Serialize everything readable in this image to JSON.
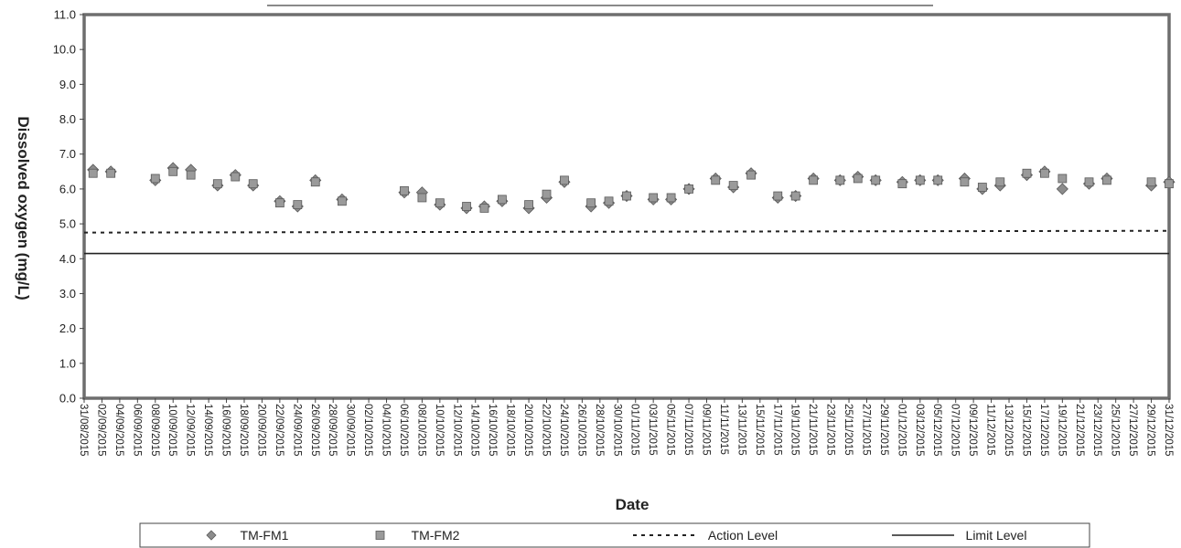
{
  "chart_data": {
    "type": "scatter",
    "title": "",
    "xlabel": "Date",
    "ylabel": "Dissolved oxygen (mg/L)",
    "ylim": [
      0,
      11
    ],
    "yticks": [
      "0.0",
      "1.0",
      "2.0",
      "3.0",
      "4.0",
      "5.0",
      "6.0",
      "7.0",
      "8.0",
      "9.0",
      "10.0",
      "11.0"
    ],
    "xlim": [
      "2015-08-31",
      "2015-12-31"
    ],
    "xtick_labels": [
      "31/08/2015",
      "02/09/2015",
      "04/09/2015",
      "06/09/2015",
      "08/09/2015",
      "10/09/2015",
      "12/09/2015",
      "14/09/2015",
      "16/09/2015",
      "18/09/2015",
      "20/09/2015",
      "22/09/2015",
      "24/09/2015",
      "26/09/2015",
      "28/09/2015",
      "30/09/2015",
      "02/10/2015",
      "04/10/2015",
      "06/10/2015",
      "08/10/2015",
      "10/10/2015",
      "12/10/2015",
      "14/10/2015",
      "16/10/2015",
      "18/10/2015",
      "20/10/2015",
      "22/10/2015",
      "24/10/2015",
      "26/10/2015",
      "28/10/2015",
      "30/10/2015",
      "01/11/2015",
      "03/11/2015",
      "05/11/2015",
      "07/11/2015",
      "09/11/2015",
      "11/11/2015",
      "13/11/2015",
      "15/11/2015",
      "17/11/2015",
      "19/11/2015",
      "21/11/2015",
      "23/11/2015",
      "25/11/2015",
      "27/11/2015",
      "29/11/2015",
      "01/12/2015",
      "03/12/2015",
      "05/12/2015",
      "07/12/2015",
      "09/12/2015",
      "11/12/2015",
      "13/12/2015",
      "15/12/2015",
      "17/12/2015",
      "19/12/2015",
      "21/12/2015",
      "23/12/2015",
      "25/12/2015",
      "27/12/2015",
      "29/12/2015",
      "31/12/2015"
    ],
    "grid": false,
    "legend_position": "bottom",
    "series": [
      {
        "name": "TM-FM1",
        "marker": "diamond",
        "color": "#8c8c8c",
        "x": [
          "2015-09-01",
          "2015-09-03",
          "2015-09-08",
          "2015-09-10",
          "2015-09-12",
          "2015-09-15",
          "2015-09-17",
          "2015-09-19",
          "2015-09-22",
          "2015-09-24",
          "2015-09-26",
          "2015-09-29",
          "2015-10-06",
          "2015-10-08",
          "2015-10-10",
          "2015-10-13",
          "2015-10-15",
          "2015-10-17",
          "2015-10-20",
          "2015-10-22",
          "2015-10-24",
          "2015-10-27",
          "2015-10-29",
          "2015-10-31",
          "2015-11-03",
          "2015-11-05",
          "2015-11-07",
          "2015-11-10",
          "2015-11-12",
          "2015-11-14",
          "2015-11-17",
          "2015-11-19",
          "2015-11-21",
          "2015-11-24",
          "2015-11-26",
          "2015-11-28",
          "2015-12-01",
          "2015-12-03",
          "2015-12-05",
          "2015-12-08",
          "2015-12-10",
          "2015-12-12",
          "2015-12-15",
          "2015-12-17",
          "2015-12-19",
          "2015-12-22",
          "2015-12-24",
          "2015-12-29",
          "2015-12-31"
        ],
        "y": [
          6.55,
          6.5,
          6.25,
          6.6,
          6.55,
          6.1,
          6.4,
          6.1,
          5.65,
          5.5,
          6.25,
          5.7,
          5.9,
          5.9,
          5.55,
          5.45,
          5.5,
          5.65,
          5.45,
          5.75,
          6.2,
          5.5,
          5.6,
          5.8,
          5.7,
          5.7,
          6.0,
          6.3,
          6.05,
          6.45,
          5.75,
          5.8,
          6.3,
          6.25,
          6.35,
          6.25,
          6.2,
          6.25,
          6.25,
          6.3,
          6.0,
          6.1,
          6.4,
          6.5,
          6.0,
          6.15,
          6.3,
          6.1,
          6.2
        ]
      },
      {
        "name": "TM-FM2",
        "marker": "square",
        "color": "#9a9a9a",
        "x": [
          "2015-09-01",
          "2015-09-03",
          "2015-09-08",
          "2015-09-10",
          "2015-09-12",
          "2015-09-15",
          "2015-09-17",
          "2015-09-19",
          "2015-09-22",
          "2015-09-24",
          "2015-09-26",
          "2015-09-29",
          "2015-10-06",
          "2015-10-08",
          "2015-10-10",
          "2015-10-13",
          "2015-10-15",
          "2015-10-17",
          "2015-10-20",
          "2015-10-22",
          "2015-10-24",
          "2015-10-27",
          "2015-10-29",
          "2015-10-31",
          "2015-11-03",
          "2015-11-05",
          "2015-11-07",
          "2015-11-10",
          "2015-11-12",
          "2015-11-14",
          "2015-11-17",
          "2015-11-19",
          "2015-11-21",
          "2015-11-24",
          "2015-11-26",
          "2015-11-28",
          "2015-12-01",
          "2015-12-03",
          "2015-12-05",
          "2015-12-08",
          "2015-12-10",
          "2015-12-12",
          "2015-12-15",
          "2015-12-17",
          "2015-12-19",
          "2015-12-22",
          "2015-12-24",
          "2015-12-29",
          "2015-12-31"
        ],
        "y": [
          6.45,
          6.45,
          6.3,
          6.5,
          6.4,
          6.15,
          6.35,
          6.15,
          5.6,
          5.55,
          6.2,
          5.65,
          5.95,
          5.75,
          5.6,
          5.5,
          5.45,
          5.7,
          5.55,
          5.85,
          6.25,
          5.6,
          5.65,
          5.8,
          5.75,
          5.75,
          6.0,
          6.25,
          6.1,
          6.4,
          5.8,
          5.8,
          6.25,
          6.25,
          6.3,
          6.25,
          6.15,
          6.25,
          6.25,
          6.2,
          6.05,
          6.2,
          6.45,
          6.45,
          6.3,
          6.2,
          6.25,
          6.2,
          6.15
        ]
      },
      {
        "name": "Action Level",
        "type": "line",
        "style": "dotted",
        "color": "#222222",
        "x": [
          "2015-08-31",
          "2015-12-31"
        ],
        "y": [
          4.75,
          4.8
        ]
      },
      {
        "name": "Limit Level",
        "type": "line",
        "style": "solid",
        "color": "#222222",
        "x": [
          "2015-08-31",
          "2015-12-31"
        ],
        "y": [
          4.15,
          4.15
        ]
      }
    ]
  }
}
